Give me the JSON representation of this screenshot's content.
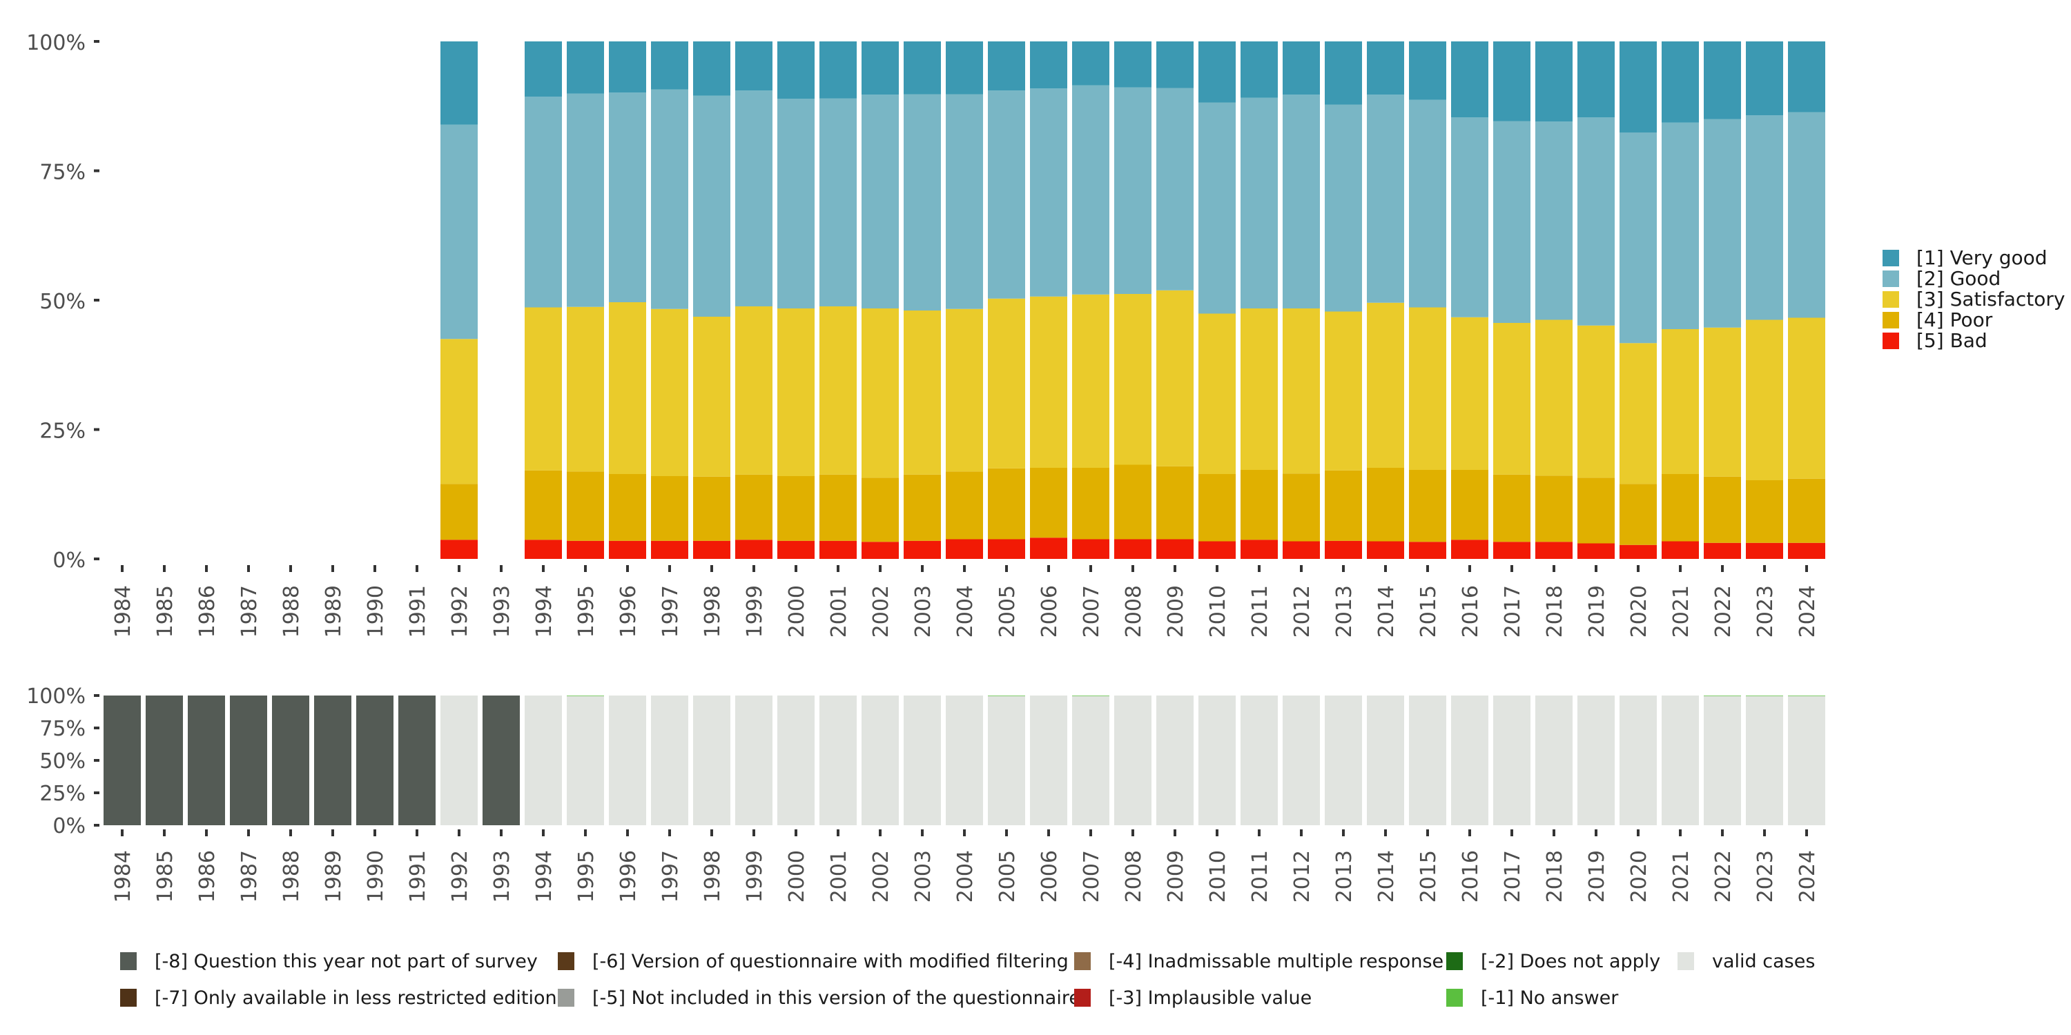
{
  "chart_data": [
    {
      "type": "bar",
      "stacked": true,
      "normalized": true,
      "title": "",
      "xlabel": "",
      "ylabel": "",
      "ylim": [
        0,
        100
      ],
      "y_ticks": [
        "0%",
        "25%",
        "50%",
        "75%",
        "100%"
      ],
      "categories": [
        "1984",
        "1985",
        "1986",
        "1987",
        "1988",
        "1989",
        "1990",
        "1991",
        "1992",
        "1993",
        "1994",
        "1995",
        "1996",
        "1997",
        "1998",
        "1999",
        "2000",
        "2001",
        "2002",
        "2003",
        "2004",
        "2005",
        "2006",
        "2007",
        "2008",
        "2009",
        "2010",
        "2011",
        "2012",
        "2013",
        "2014",
        "2015",
        "2016",
        "2017",
        "2018",
        "2019",
        "2020",
        "2021",
        "2022",
        "2023",
        "2024"
      ],
      "legend_position": "right",
      "series": [
        {
          "name": "[5] Bad",
          "color": "#f21a05",
          "values": [
            null,
            null,
            null,
            null,
            null,
            null,
            null,
            null,
            3.7,
            null,
            3.7,
            3.5,
            3.5,
            3.5,
            3.5,
            3.7,
            3.5,
            3.5,
            3.3,
            3.5,
            3.8,
            3.8,
            4.1,
            3.8,
            3.8,
            3.8,
            3.4,
            3.7,
            3.4,
            3.5,
            3.4,
            3.3,
            3.7,
            3.3,
            3.3,
            3.0,
            2.7,
            3.4,
            3.1,
            3.1,
            3.1
          ]
        },
        {
          "name": "[4] Poor",
          "color": "#e0b000",
          "values": [
            null,
            null,
            null,
            null,
            null,
            null,
            null,
            null,
            10.8,
            null,
            13.4,
            13.4,
            12.9,
            12.5,
            12.4,
            12.6,
            12.5,
            12.8,
            12.4,
            12.8,
            13.1,
            13.7,
            13.5,
            13.8,
            14.4,
            14.1,
            13.0,
            13.5,
            13.1,
            13.6,
            14.2,
            13.9,
            13.5,
            13.0,
            12.8,
            12.7,
            11.8,
            13.0,
            12.8,
            12.1,
            12.4
          ]
        },
        {
          "name": "[3] Satisfactory",
          "color": "#eacb2b",
          "values": [
            null,
            null,
            null,
            null,
            null,
            null,
            null,
            null,
            28.0,
            null,
            31.5,
            31.8,
            33.2,
            32.3,
            30.9,
            32.5,
            32.4,
            32.5,
            32.7,
            31.7,
            31.4,
            32.8,
            33.1,
            33.5,
            33.0,
            34.0,
            31.0,
            31.2,
            31.9,
            30.7,
            31.9,
            31.4,
            29.5,
            29.3,
            30.1,
            29.4,
            27.2,
            28.0,
            28.8,
            31.0,
            31.1
          ]
        },
        {
          "name": "[2] Good",
          "color": "#79b6c5",
          "values": [
            null,
            null,
            null,
            null,
            null,
            null,
            null,
            null,
            41.4,
            null,
            40.7,
            41.2,
            40.5,
            42.4,
            42.7,
            41.7,
            40.5,
            40.2,
            41.3,
            41.8,
            41.5,
            40.2,
            40.2,
            40.4,
            39.9,
            39.1,
            40.8,
            40.7,
            41.3,
            40.0,
            40.2,
            40.1,
            38.6,
            39.0,
            38.3,
            40.2,
            40.7,
            39.9,
            40.3,
            39.5,
            39.7
          ]
        },
        {
          "name": "[1] Very good",
          "color": "#3c99b2",
          "values": [
            null,
            null,
            null,
            null,
            null,
            null,
            null,
            null,
            16.1,
            null,
            10.7,
            10.1,
            9.9,
            9.3,
            10.5,
            9.5,
            11.1,
            11.0,
            10.3,
            10.2,
            10.2,
            9.5,
            9.1,
            8.5,
            8.9,
            9.0,
            11.8,
            10.9,
            10.3,
            12.2,
            10.3,
            11.3,
            14.7,
            15.4,
            15.5,
            14.7,
            17.6,
            15.7,
            15.0,
            14.3,
            13.7
          ]
        }
      ],
      "legend": [
        "[1] Very good",
        "[2] Good",
        "[3] Satisfactory",
        "[4] Poor",
        "[5] Bad"
      ]
    },
    {
      "type": "bar",
      "stacked": true,
      "normalized": true,
      "title": "",
      "xlabel": "",
      "ylabel": "",
      "ylim": [
        0,
        100
      ],
      "y_ticks": [
        "0%",
        "25%",
        "50%",
        "75%",
        "100%"
      ],
      "categories": [
        "1984",
        "1985",
        "1986",
        "1987",
        "1988",
        "1989",
        "1990",
        "1991",
        "1992",
        "1993",
        "1994",
        "1995",
        "1996",
        "1997",
        "1998",
        "1999",
        "2000",
        "2001",
        "2002",
        "2003",
        "2004",
        "2005",
        "2006",
        "2007",
        "2008",
        "2009",
        "2010",
        "2011",
        "2012",
        "2013",
        "2014",
        "2015",
        "2016",
        "2017",
        "2018",
        "2019",
        "2020",
        "2021",
        "2022",
        "2023",
        "2024"
      ],
      "legend_position": "bottom",
      "series": [
        {
          "name": "valid cases",
          "color": "#e1e4e0",
          "values": [
            0,
            0,
            0,
            0,
            0,
            0,
            0,
            0,
            100,
            0,
            100,
            99.6,
            100,
            100,
            100,
            100,
            100,
            100,
            100,
            100,
            100,
            99.6,
            100,
            99.6,
            100,
            100,
            100,
            100,
            100,
            100,
            100,
            100,
            100,
            100,
            100,
            100,
            100,
            100,
            99.6,
            99.6,
            99.6
          ]
        },
        {
          "name": "[-1] No answer",
          "color": "#5bbf3f",
          "values": [
            0,
            0,
            0,
            0,
            0,
            0,
            0,
            0,
            0,
            0,
            0,
            0.4,
            0,
            0,
            0,
            0,
            0,
            0,
            0,
            0,
            0,
            0.4,
            0,
            0.4,
            0,
            0,
            0,
            0,
            0,
            0,
            0,
            0,
            0,
            0,
            0,
            0,
            0,
            0,
            0.4,
            0.4,
            0.4
          ]
        },
        {
          "name": "[-8] Question this year not part of survey",
          "color": "#545b55",
          "values": [
            100,
            100,
            100,
            100,
            100,
            100,
            100,
            100,
            0,
            100,
            0,
            0,
            0,
            0,
            0,
            0,
            0,
            0,
            0,
            0,
            0,
            0,
            0,
            0,
            0,
            0,
            0,
            0,
            0,
            0,
            0,
            0,
            0,
            0,
            0,
            0,
            0,
            0,
            0,
            0,
            0
          ]
        }
      ],
      "legend": [
        {
          "label": "[-8] Question this year not part of survey",
          "color": "#545b55"
        },
        {
          "label": "[-7] Only available in less restricted edition",
          "color": "#4f3217"
        },
        {
          "label": "[-6] Version of questionnaire with modified filtering",
          "color": "#5a3a1a"
        },
        {
          "label": "[-5] Not included in this version of the questionnaire",
          "color": "#999c98"
        },
        {
          "label": "[-4] Inadmissable multiple response",
          "color": "#8f6b48"
        },
        {
          "label": "[-3] Implausible value",
          "color": "#b31e1a"
        },
        {
          "label": "[-2] Does not apply",
          "color": "#1d6b15"
        },
        {
          "label": "[-1] No answer",
          "color": "#5bbf3f"
        },
        {
          "label": "valid cases",
          "color": "#e1e4e0"
        }
      ]
    }
  ]
}
